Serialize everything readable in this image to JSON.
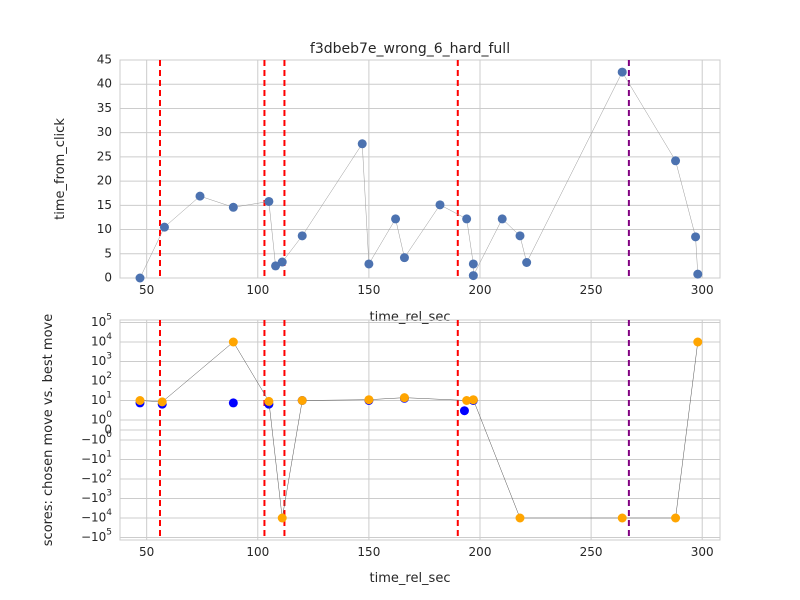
{
  "figure": {
    "title": "f3dbeb7e_wrong_6_hard_full"
  },
  "chart_data": [
    {
      "type": "scatter",
      "title": "f3dbeb7e_wrong_6_hard_full",
      "xlabel": "time_rel_sec",
      "ylabel": "time_from_click",
      "xlim": [
        38,
        308
      ],
      "ylim": [
        0,
        45
      ],
      "xticks": [
        50,
        100,
        150,
        200,
        250,
        300
      ],
      "yticks": [
        0,
        5,
        10,
        15,
        20,
        25,
        30,
        35,
        40,
        45
      ],
      "grid": true,
      "series": [
        {
          "color": "#4c72b0",
          "connected": true,
          "points": [
            [
              47,
              0
            ],
            [
              58,
              10.5
            ],
            [
              74,
              16.9
            ],
            [
              89,
              14.6
            ],
            [
              105,
              15.8
            ],
            [
              108,
              2.5
            ],
            [
              111,
              3.3
            ],
            [
              120,
              8.7
            ],
            [
              147,
              27.7
            ],
            [
              150,
              2.9
            ],
            [
              162,
              12.2
            ],
            [
              166,
              4.2
            ],
            [
              182,
              15.1
            ],
            [
              194,
              12.2
            ],
            [
              197,
              2.9
            ],
            [
              197,
              0.5
            ],
            [
              210,
              12.2
            ],
            [
              218,
              8.7
            ],
            [
              221,
              3.2
            ],
            [
              264,
              42.5
            ],
            [
              288,
              24.2
            ],
            [
              297,
              8.5
            ],
            [
              298,
              0.8
            ]
          ]
        }
      ],
      "vlines": [
        {
          "x": 56,
          "color": "#ff0000"
        },
        {
          "x": 103,
          "color": "#ff0000"
        },
        {
          "x": 112,
          "color": "#ff0000"
        },
        {
          "x": 190,
          "color": "#ff0000"
        },
        {
          "x": 267,
          "color": "#800080"
        }
      ]
    },
    {
      "type": "scatter",
      "xlabel": "time_rel_sec",
      "ylabel": "scores: chosen move vs. best move",
      "xlim": [
        38,
        308
      ],
      "yscale": "symlog",
      "ylim": [
        -100000,
        100000
      ],
      "xticks": [
        50,
        100,
        150,
        200,
        250,
        300
      ],
      "ytick_labels": [
        "10^5",
        "10^4",
        "10^3",
        "10^2",
        "10^1",
        "10^0",
        "0",
        "-10^0",
        "-10^1",
        "-10^2",
        "-10^3",
        "-10^4",
        "-10^5"
      ],
      "grid": true,
      "series": [
        {
          "color": "#0000ff",
          "connected": false,
          "points": [
            [
              47,
              7.5
            ],
            [
              57,
              6.5
            ],
            [
              89,
              7.5
            ],
            [
              105,
              6.5
            ],
            [
              120,
              10
            ],
            [
              150,
              10
            ],
            [
              166,
              13
            ],
            [
              193,
              3
            ],
            [
              197,
              10
            ]
          ]
        },
        {
          "color": "#ffa500",
          "connected": true,
          "points": [
            [
              47,
              10
            ],
            [
              57,
              8.5
            ],
            [
              89,
              10000
            ],
            [
              105,
              9
            ],
            [
              111,
              -10000
            ],
            [
              120,
              10
            ],
            [
              150,
              11
            ],
            [
              166,
              14
            ],
            [
              194,
              10
            ],
            [
              197,
              11
            ],
            [
              218,
              -10000
            ],
            [
              264,
              -10000
            ],
            [
              288,
              -10000
            ],
            [
              298,
              10000
            ]
          ]
        }
      ],
      "vlines": [
        {
          "x": 56,
          "color": "#ff0000"
        },
        {
          "x": 103,
          "color": "#ff0000"
        },
        {
          "x": 112,
          "color": "#ff0000"
        },
        {
          "x": 190,
          "color": "#ff0000"
        },
        {
          "x": 267,
          "color": "#800080"
        }
      ]
    }
  ]
}
